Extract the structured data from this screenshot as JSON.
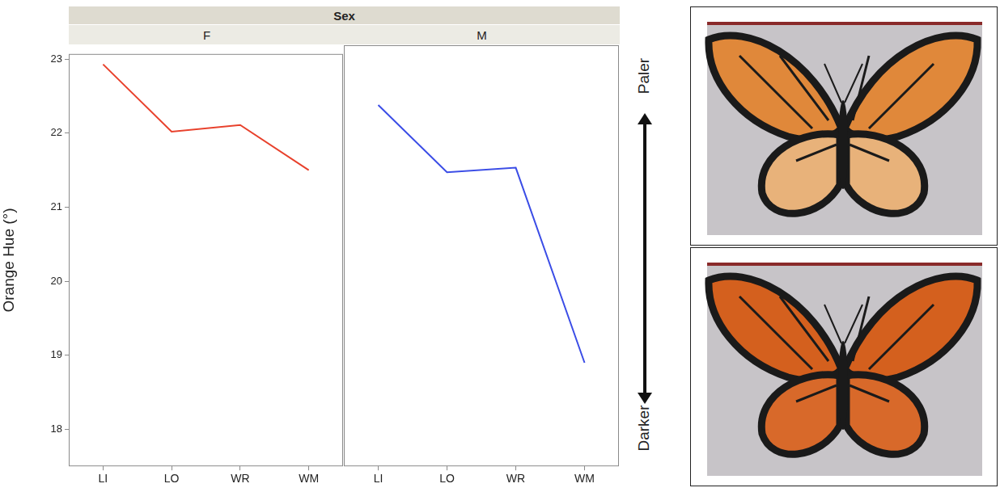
{
  "facet_title": "Sex",
  "arrow_labels": {
    "top": "Paler",
    "bottom": "Darker"
  },
  "chart_data": [
    {
      "type": "line",
      "title": "F",
      "categories": [
        "LI",
        "LO",
        "WR",
        "WM"
      ],
      "values": [
        22.93,
        22.02,
        22.11,
        21.5
      ],
      "color": "#e8412c",
      "y_label": "Orange Hue (°)",
      "ylim": [
        17.5,
        23.07
      ],
      "yticks": [
        18,
        19,
        20,
        21,
        22,
        23
      ],
      "grid": false
    },
    {
      "type": "line",
      "title": "M",
      "categories": [
        "LI",
        "LO",
        "WR",
        "WM"
      ],
      "values": [
        22.28,
        21.39,
        21.45,
        18.87
      ],
      "color": "#3b4de6",
      "ylim": [
        17.5,
        23.07
      ],
      "yticks": [
        18,
        19,
        20,
        21,
        22,
        23
      ],
      "grid": false,
      "tick_labels": "x"
    }
  ]
}
